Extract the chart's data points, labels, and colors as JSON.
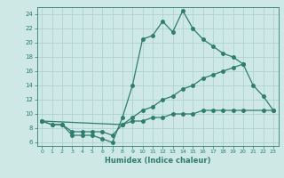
{
  "line1_x": [
    0,
    1,
    2,
    3,
    4,
    5,
    6,
    7,
    8,
    9,
    10,
    11,
    12,
    13,
    14,
    15,
    16,
    17,
    18,
    19,
    20,
    21,
    22,
    23
  ],
  "line1_y": [
    9.0,
    8.5,
    8.5,
    7.0,
    7.0,
    7.0,
    6.5,
    6.0,
    9.5,
    14.0,
    20.5,
    21.0,
    23.0,
    21.5,
    24.5,
    22.0,
    20.5,
    19.5,
    18.5,
    18.0,
    17.0,
    14.0,
    12.5,
    10.5
  ],
  "line2_x": [
    0,
    1,
    2,
    3,
    4,
    5,
    6,
    7,
    8,
    9,
    10,
    11,
    12,
    13,
    14,
    15,
    16,
    17,
    18,
    19,
    20
  ],
  "line2_y": [
    9.0,
    8.5,
    8.5,
    7.5,
    7.5,
    7.5,
    7.5,
    7.0,
    8.5,
    9.5,
    10.5,
    11.0,
    12.0,
    12.5,
    13.5,
    14.0,
    15.0,
    15.5,
    16.0,
    16.5,
    17.0
  ],
  "line3_x": [
    0,
    8,
    9,
    10,
    11,
    12,
    13,
    14,
    15,
    16,
    17,
    18,
    19,
    20,
    22,
    23
  ],
  "line3_y": [
    9.0,
    8.5,
    9.0,
    9.0,
    9.5,
    9.5,
    10.0,
    10.0,
    10.0,
    10.5,
    10.5,
    10.5,
    10.5,
    10.5,
    10.5,
    10.5
  ],
  "color": "#2e7d6e",
  "bg_color": "#cde8e5",
  "grid_color": "#aacfcc",
  "xlabel": "Humidex (Indice chaleur)",
  "xlim": [
    -0.5,
    23.5
  ],
  "ylim": [
    5.5,
    25.0
  ],
  "xticks": [
    0,
    1,
    2,
    3,
    4,
    5,
    6,
    7,
    8,
    9,
    10,
    11,
    12,
    13,
    14,
    15,
    16,
    17,
    18,
    19,
    20,
    21,
    22,
    23
  ],
  "yticks": [
    6,
    8,
    10,
    12,
    14,
    16,
    18,
    20,
    22,
    24
  ]
}
